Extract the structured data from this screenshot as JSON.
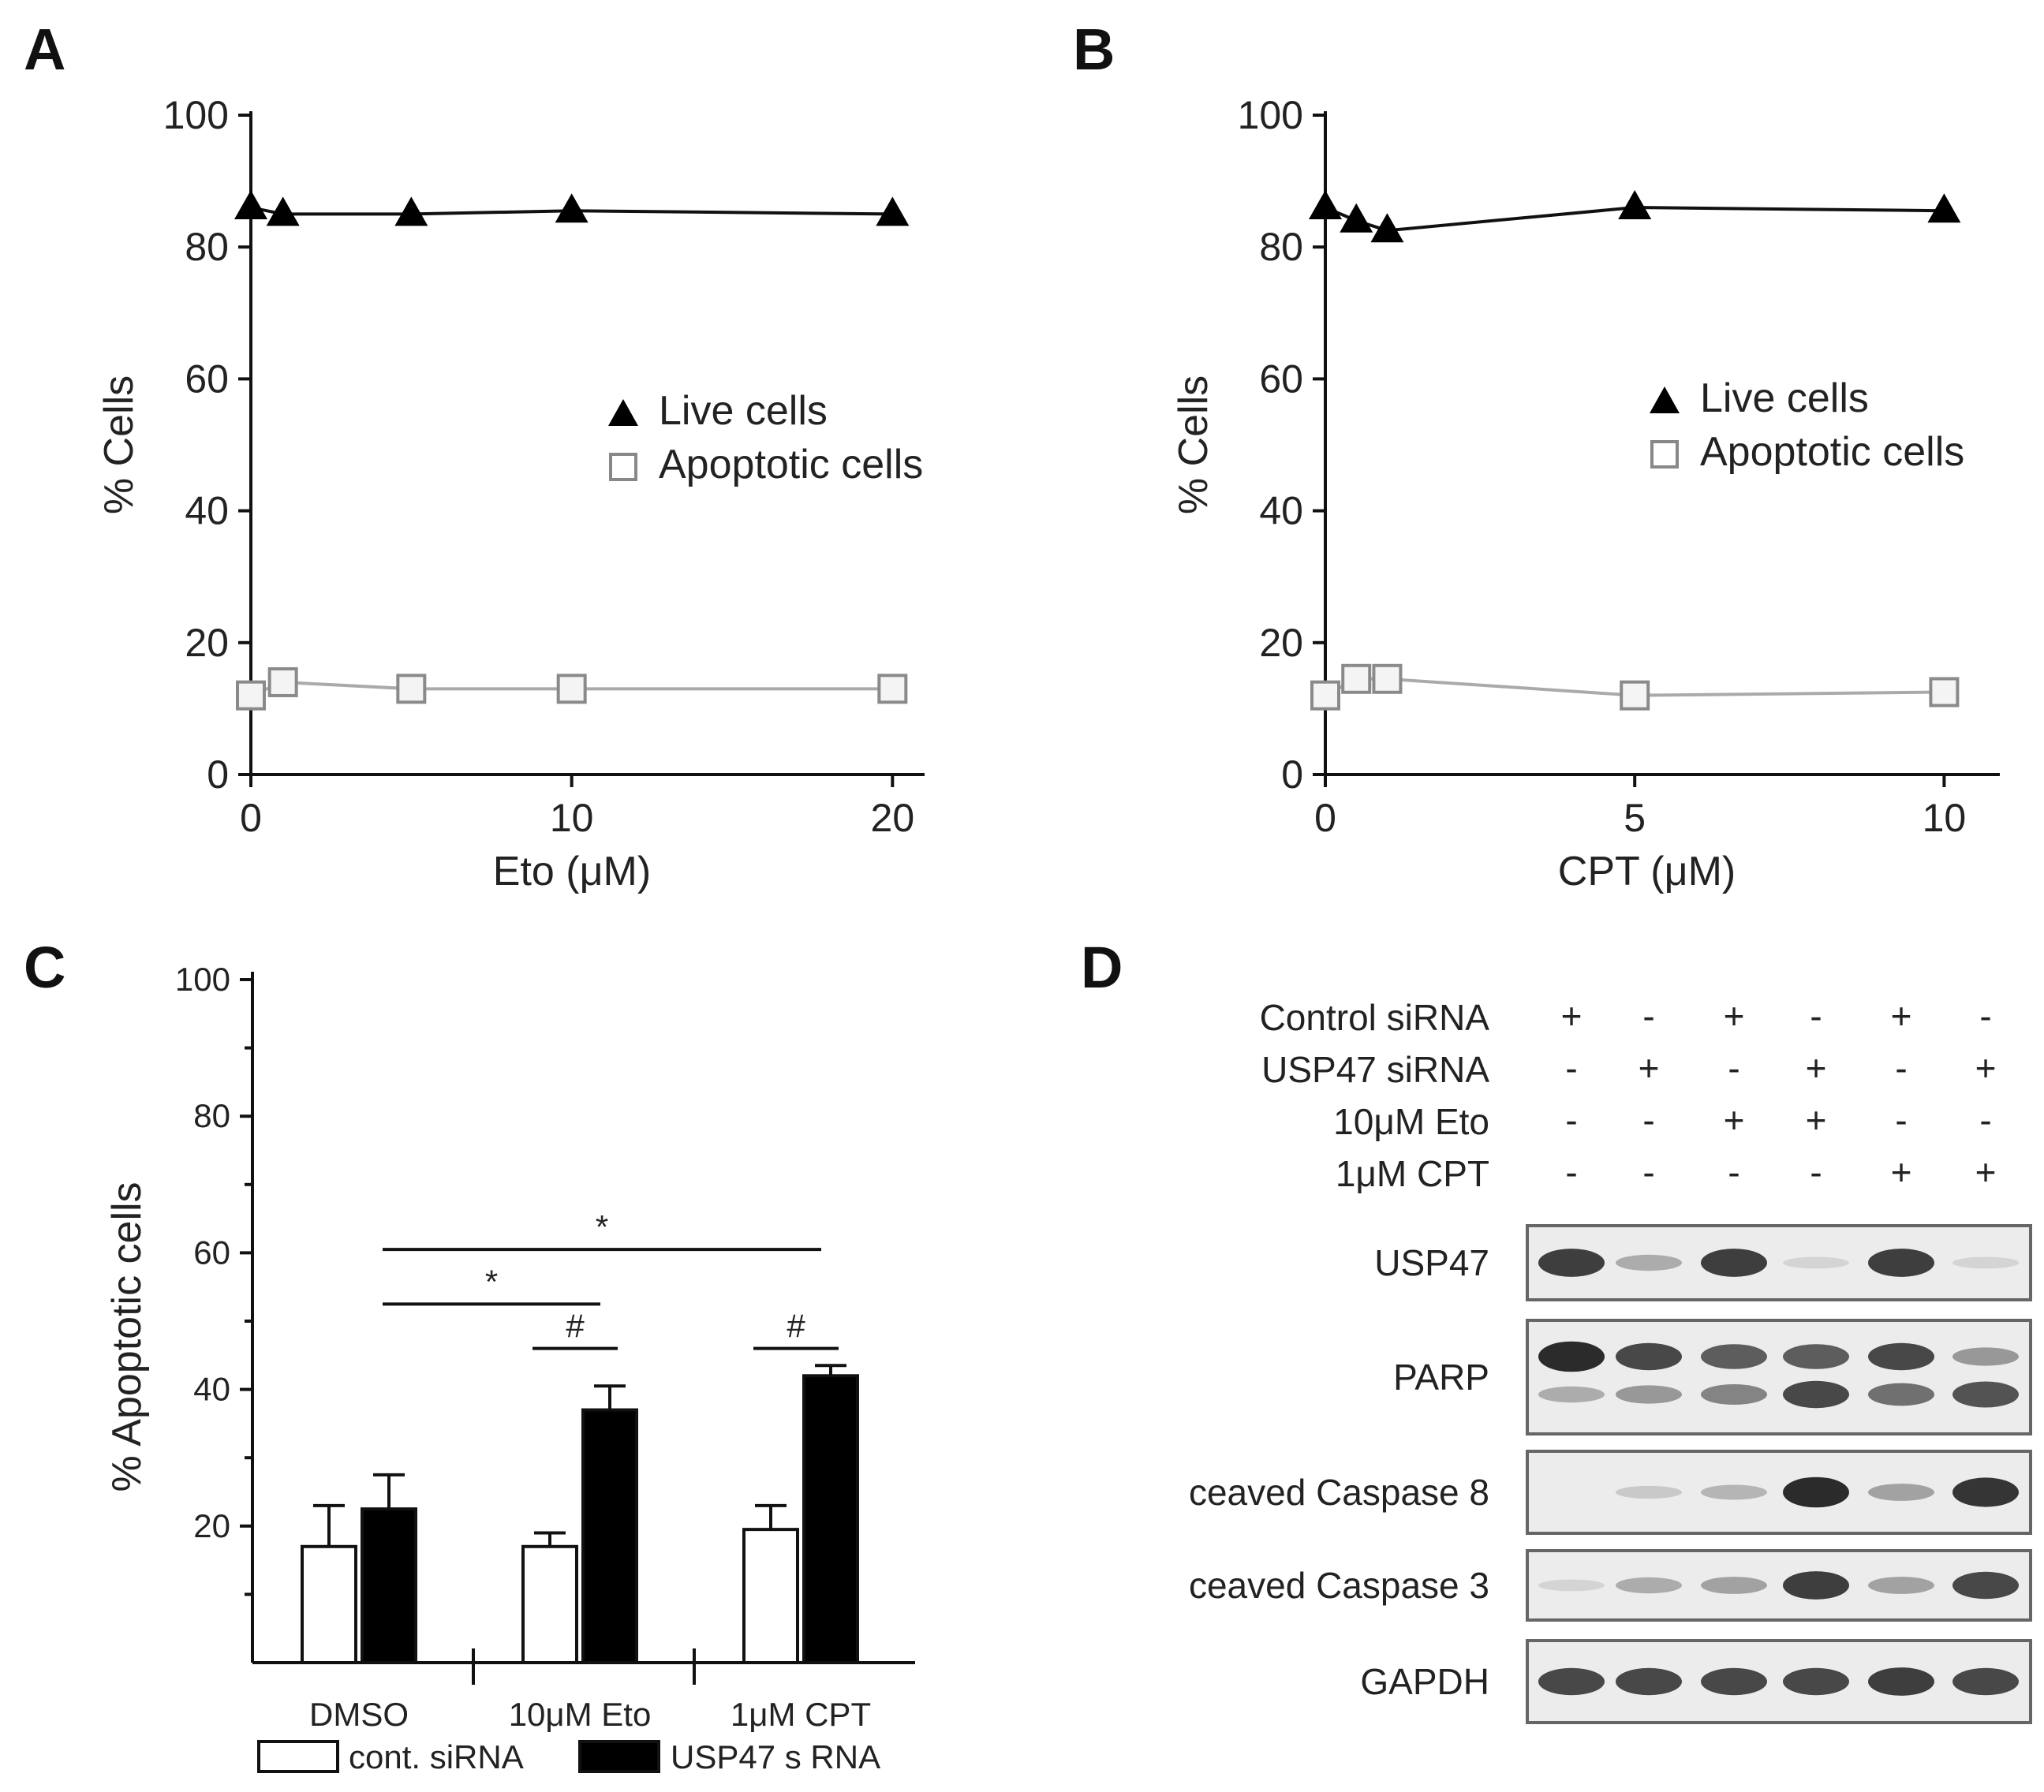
{
  "panels": {
    "a": "A",
    "b": "B",
    "c": "C",
    "d": "D"
  },
  "chart_data": [
    {
      "id": "A",
      "type": "line",
      "title": "",
      "xlabel": "Eto  (μM)",
      "ylabel": "% Cells",
      "xlim": [
        0,
        21
      ],
      "ylim": [
        0,
        100
      ],
      "xticks": [
        0,
        10,
        20
      ],
      "yticks": [
        0,
        20,
        40,
        60,
        80,
        100
      ],
      "legend_position": "center-right",
      "series": [
        {
          "name": "Live cells",
          "marker": "triangle",
          "color": "#000000",
          "x": [
            0,
            1,
            5,
            10,
            20
          ],
          "y": [
            86,
            85,
            85,
            85.5,
            85
          ]
        },
        {
          "name": "Apoptotic cells",
          "marker": "square",
          "color": "#b0b0b0",
          "x": [
            0,
            1,
            5,
            10,
            20
          ],
          "y": [
            12,
            14,
            13,
            13,
            13
          ]
        }
      ]
    },
    {
      "id": "B",
      "type": "line",
      "title": "",
      "xlabel": "CPT  (μM)",
      "ylabel": "% Cells",
      "xlim": [
        0,
        10.9
      ],
      "ylim": [
        0,
        100
      ],
      "xticks": [
        0,
        5,
        10
      ],
      "yticks": [
        0,
        20,
        40,
        60,
        80,
        100
      ],
      "legend_position": "center-right",
      "series": [
        {
          "name": "Live cells",
          "marker": "triangle",
          "color": "#000000",
          "x": [
            0,
            0.5,
            1,
            5,
            10
          ],
          "y": [
            86,
            84,
            82.5,
            86,
            85.5
          ]
        },
        {
          "name": "Apoptotic cells",
          "marker": "square",
          "color": "#b0b0b0",
          "x": [
            0,
            0.5,
            1,
            5,
            10
          ],
          "y": [
            12,
            14.5,
            14.5,
            12,
            12.5
          ]
        }
      ]
    },
    {
      "id": "C",
      "type": "bar",
      "title": "",
      "xlabel": "",
      "ylabel": "% Apoptotic cells",
      "ylim": [
        0,
        100
      ],
      "yticks": [
        20,
        40,
        60,
        80,
        100
      ],
      "categories": [
        "DMSO",
        "10μM Eto",
        "1μM CPT"
      ],
      "series": [
        {
          "name": "cont. siRNA",
          "color": "#ffffff",
          "values": [
            17,
            17,
            19.5
          ],
          "errors": [
            6,
            2,
            3.5
          ]
        },
        {
          "name": "USP47 s RNA",
          "color": "#000000",
          "values": [
            22.5,
            37,
            42
          ],
          "errors": [
            5,
            3.5,
            1.5
          ]
        }
      ],
      "significance": [
        {
          "label": "*",
          "from": "DMSO",
          "to": "1μM CPT",
          "y": 60.5
        },
        {
          "label": "*",
          "from": "DMSO",
          "to": "10μM Eto",
          "y": 52.5
        },
        {
          "label": "#",
          "within": "10μM Eto",
          "y": 46
        },
        {
          "label": "#",
          "within": "1μM CPT",
          "y": 46
        }
      ]
    }
  ],
  "western": {
    "conditions": [
      {
        "label": "Control siRNA",
        "signs": [
          "+",
          "-",
          "+",
          "-",
          "+",
          "-"
        ]
      },
      {
        "label": "USP47 siRNA",
        "signs": [
          "-",
          "+",
          "-",
          "+",
          "-",
          "+"
        ]
      },
      {
        "label": "10μM Eto",
        "signs": [
          "-",
          "-",
          "+",
          "+",
          "-",
          "-"
        ]
      },
      {
        "label": "1μM CPT",
        "signs": [
          "-",
          "-",
          "-",
          "-",
          "+",
          "+"
        ]
      }
    ],
    "blots": [
      {
        "label": "USP47",
        "bands": [
          [
            0.85,
            0.3,
            0.85,
            0.1,
            0.85,
            0.1
          ]
        ]
      },
      {
        "label": "PARP",
        "bands": [
          [
            0.95,
            0.8,
            0.7,
            0.7,
            0.8,
            0.4
          ],
          [
            0.3,
            0.4,
            0.5,
            0.8,
            0.6,
            0.75
          ]
        ]
      },
      {
        "label": "ceaved Caspase 8",
        "bands": [
          [
            0.0,
            0.15,
            0.25,
            0.95,
            0.35,
            0.9
          ]
        ]
      },
      {
        "label": "ceaved Caspase 3",
        "bands": [
          [
            0.1,
            0.3,
            0.35,
            0.85,
            0.35,
            0.8
          ]
        ]
      },
      {
        "label": "GAPDH",
        "bands": [
          [
            0.8,
            0.8,
            0.8,
            0.8,
            0.85,
            0.8
          ]
        ]
      }
    ]
  }
}
